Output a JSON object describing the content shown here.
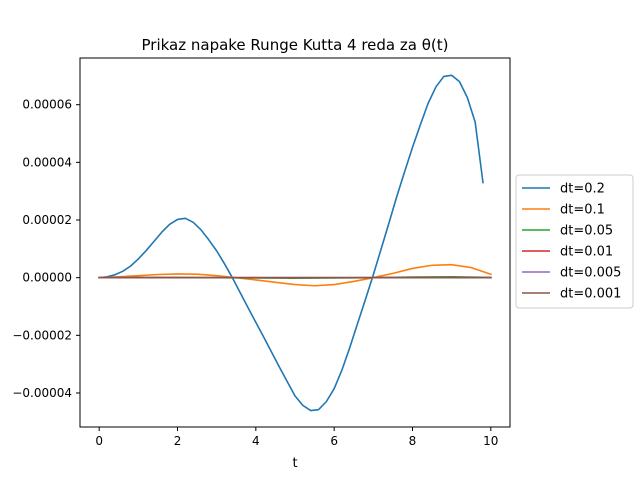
{
  "chart_data": {
    "type": "line",
    "title": "Prikaz napake Runge Kutta 4 reda za θ(t)",
    "xlabel": "t",
    "ylabel": "",
    "xlim": [
      -0.49,
      10.49
    ],
    "ylim": [
      -5.18e-05,
      7.62e-05
    ],
    "xticks": [
      0,
      2,
      4,
      6,
      8,
      10
    ],
    "xtick_labels": [
      "0",
      "2",
      "4",
      "6",
      "8",
      "10"
    ],
    "yticks": [
      -4e-05,
      -2e-05,
      0,
      2e-05,
      4e-05,
      6e-05
    ],
    "ytick_labels": [
      "−0.00004",
      "−0.00002",
      "0.00000",
      "0.00002",
      "0.00004",
      "0.00006"
    ],
    "grid": false,
    "legend_position": "center-right outside",
    "series": [
      {
        "name": "dt=0.2",
        "color": "#1f77b4",
        "x": [
          0,
          0.2,
          0.4,
          0.6,
          0.8,
          1.0,
          1.2,
          1.4,
          1.6,
          1.8,
          2.0,
          2.2,
          2.4,
          2.6,
          2.8,
          3.0,
          3.2,
          3.4,
          3.6,
          3.8,
          4.0,
          4.2,
          4.4,
          4.6,
          4.8,
          5.0,
          5.2,
          5.4,
          5.6,
          5.8,
          6.0,
          6.2,
          6.4,
          6.6,
          6.8,
          7.0,
          7.2,
          7.4,
          7.6,
          7.8,
          8.0,
          8.2,
          8.4,
          8.6,
          8.8,
          9.0,
          9.2,
          9.4,
          9.6,
          9.8
        ],
        "y": [
          0,
          3e-07,
          1e-06,
          2.2e-06,
          4e-06,
          6.5e-06,
          9.4e-06,
          1.26e-05,
          1.58e-05,
          1.85e-05,
          2.02e-05,
          2.06e-05,
          1.92e-05,
          1.66e-05,
          1.31e-05,
          9.3e-06,
          4.8e-06,
          0.0,
          -5.2e-06,
          -1.04e-05,
          -1.55e-05,
          -2.06e-05,
          -2.58e-05,
          -3.1e-05,
          -3.6e-05,
          -4.1e-05,
          -4.43e-05,
          -4.61e-05,
          -4.58e-05,
          -4.3e-05,
          -3.85e-05,
          -3.2e-05,
          -2.42e-05,
          -1.58e-05,
          -7.5e-06,
          1e-06,
          1e-05,
          1.9e-05,
          2.82e-05,
          3.68e-05,
          4.52e-05,
          5.3e-05,
          6.05e-05,
          6.62e-05,
          6.98e-05,
          7.02e-05,
          6.8e-05,
          6.25e-05,
          5.4e-05,
          3.3e-05
        ]
      },
      {
        "name": "dt=0.1",
        "color": "#ff7f0e",
        "x": [
          0,
          0.5,
          1.0,
          1.5,
          2.0,
          2.5,
          3.0,
          3.5,
          4.0,
          4.5,
          5.0,
          5.5,
          6.0,
          6.5,
          7.0,
          7.5,
          8.0,
          8.5,
          9.0,
          9.5,
          10.0
        ],
        "y": [
          0,
          3e-07,
          7e-07,
          1.1e-06,
          1.3e-06,
          1.2e-06,
          7e-07,
          0.0,
          -8e-07,
          -1.6e-06,
          -2.4e-06,
          -2.8e-06,
          -2.4e-06,
          -1.3e-06,
          0.0,
          1.5e-06,
          3.2e-06,
          4.3e-06,
          4.5e-06,
          3.5e-06,
          1.2e-06
        ]
      },
      {
        "name": "dt=0.05",
        "color": "#2ca02c",
        "x": [
          0,
          1,
          2,
          3,
          4,
          5,
          6,
          7,
          8,
          9,
          10
        ],
        "y": [
          0,
          1e-07,
          1e-07,
          0.0,
          -1e-07,
          -2e-07,
          -1e-07,
          0.0,
          2e-07,
          3e-07,
          1e-07
        ]
      },
      {
        "name": "dt=0.01",
        "color": "#d62728",
        "x": [
          0,
          10
        ],
        "y": [
          0,
          0
        ]
      },
      {
        "name": "dt=0.005",
        "color": "#9467bd",
        "x": [
          0,
          10
        ],
        "y": [
          0,
          0
        ]
      },
      {
        "name": "dt=0.001",
        "color": "#8c564b",
        "x": [
          0,
          10
        ],
        "y": [
          0,
          0
        ]
      }
    ]
  }
}
